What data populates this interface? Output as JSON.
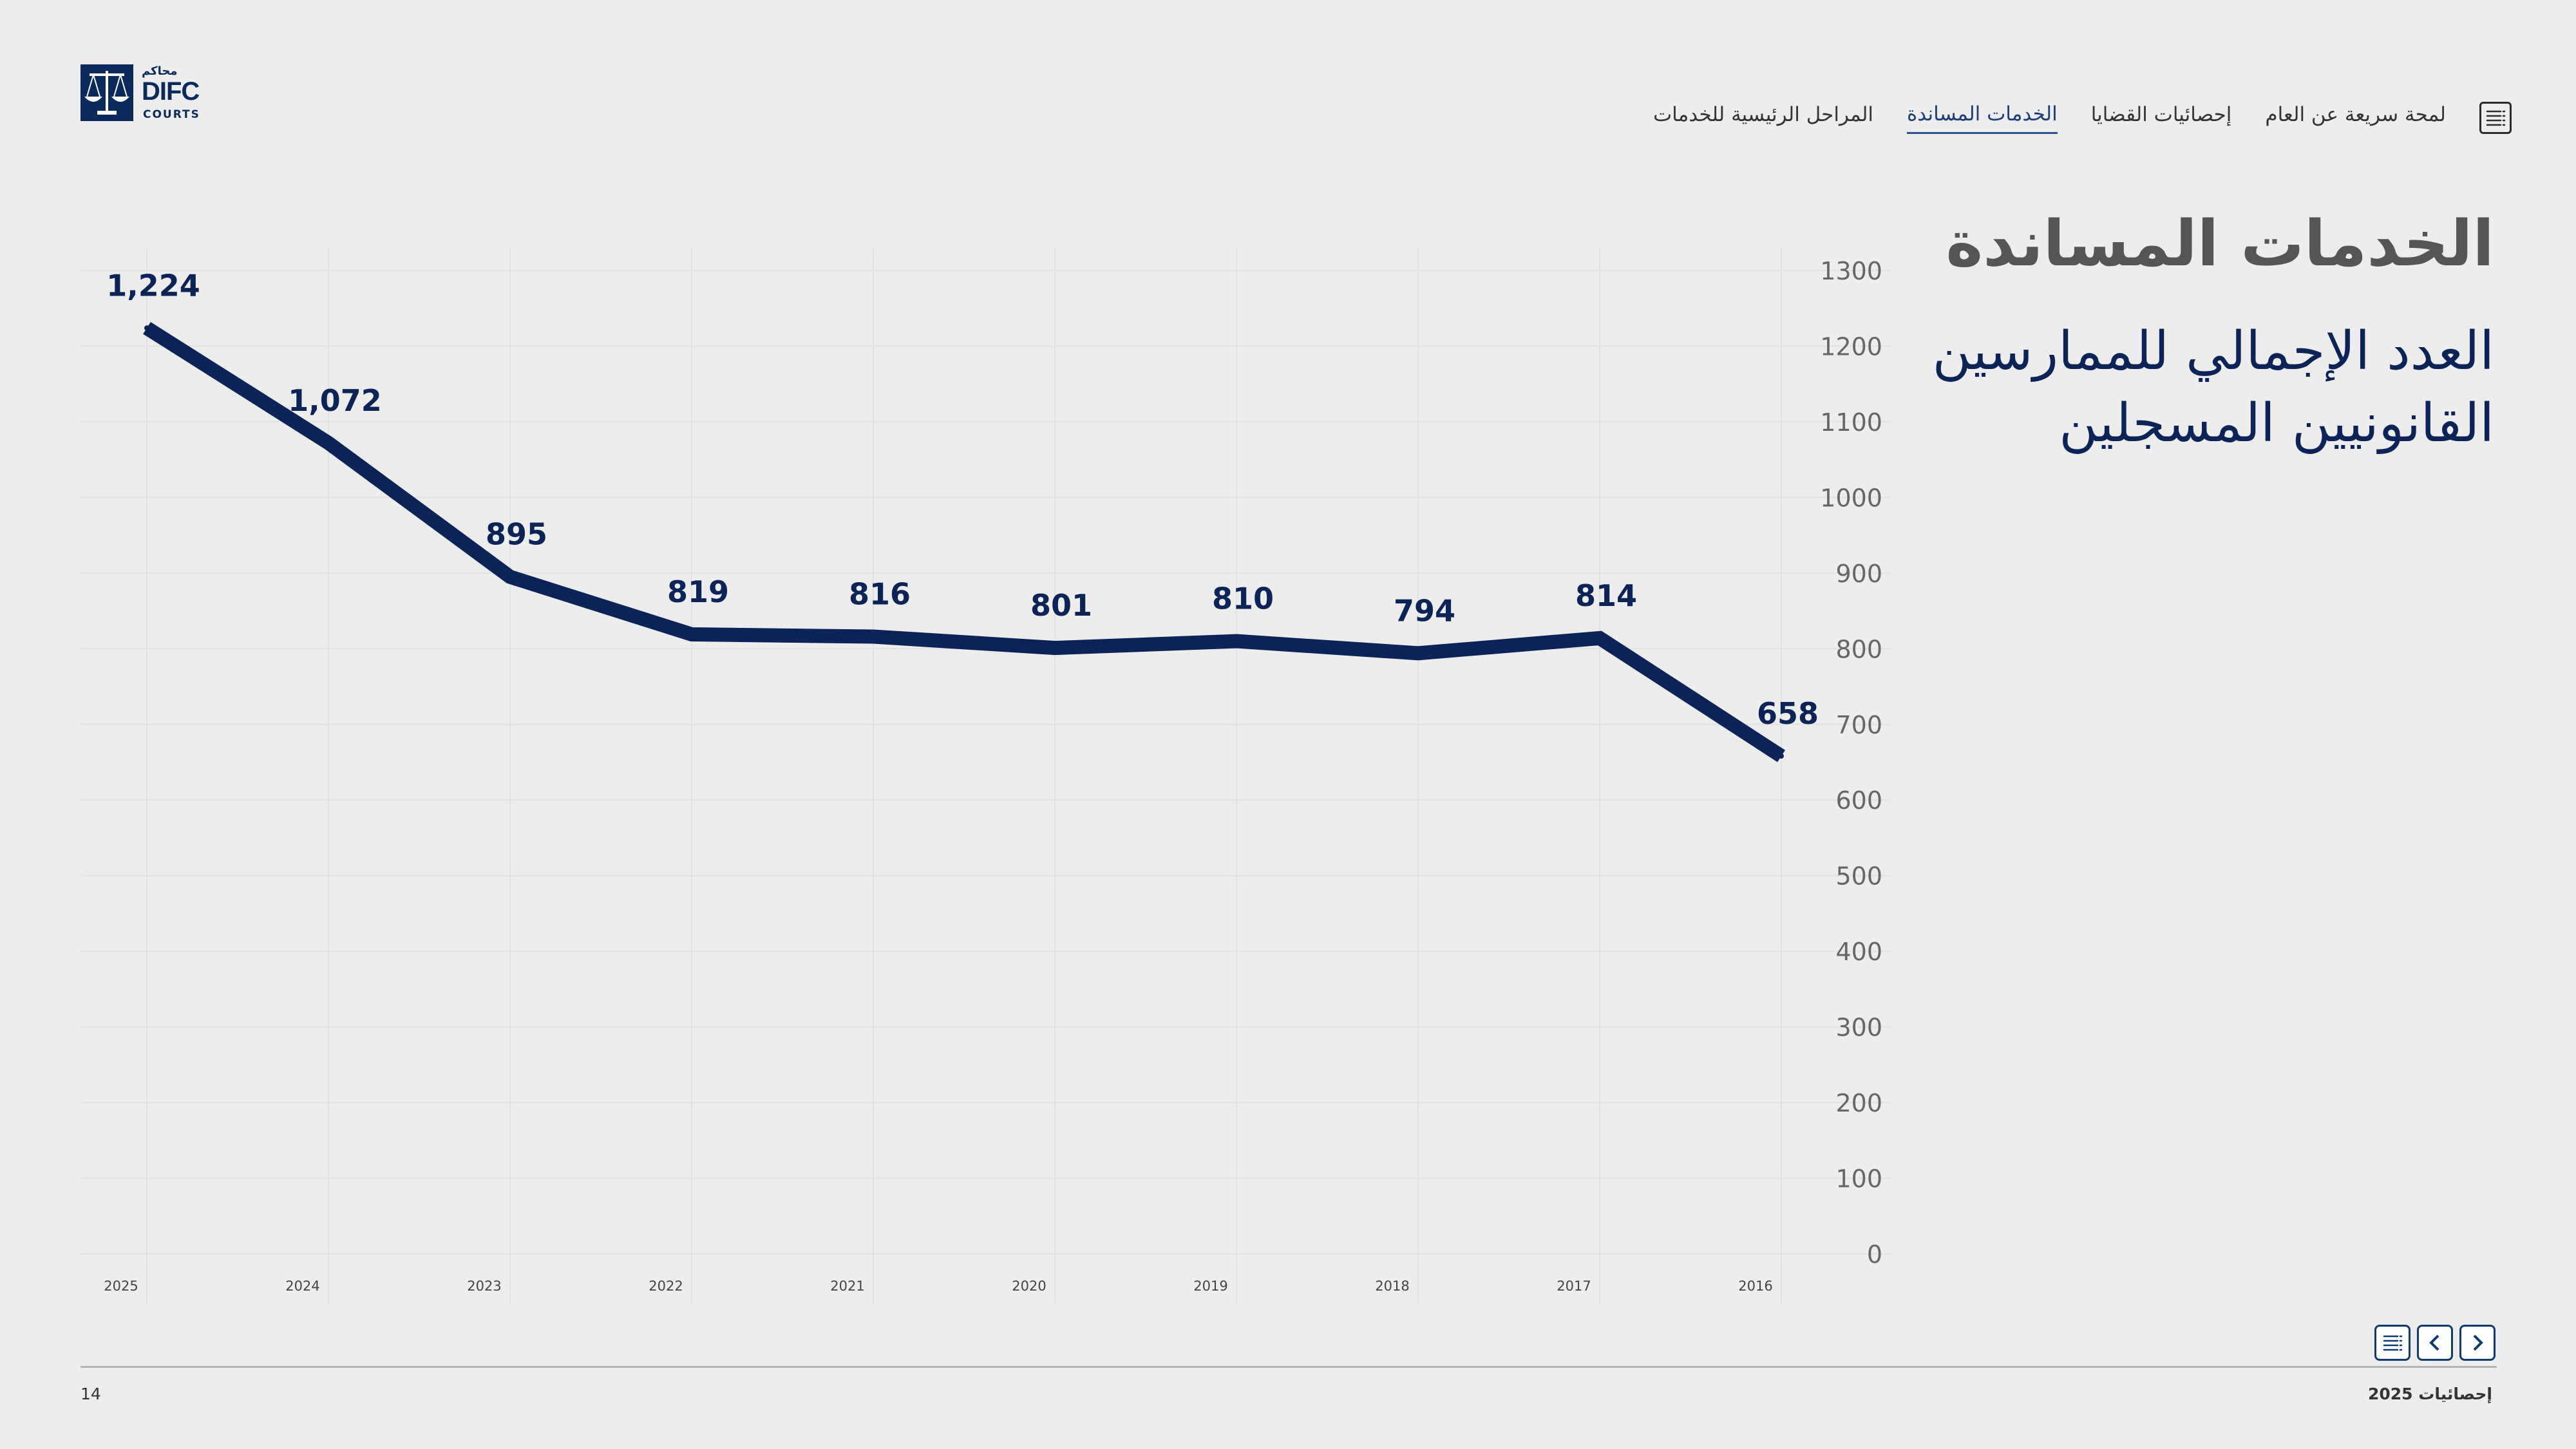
{
  "logo": {
    "arabic": "محاكم",
    "name": "DIFC",
    "sub": "COURTS"
  },
  "nav": {
    "items": [
      {
        "label": "لمحة سريعة عن العام",
        "active": false
      },
      {
        "label": "إحصائيات القضايا",
        "active": false
      },
      {
        "label": "الخدمات المساندة",
        "active": true
      },
      {
        "label": "المراحل الرئيسية للخدمات",
        "active": false
      }
    ]
  },
  "title": "الخدمات المساندة",
  "subtitle": "العدد الإجمالي للممارسين القانونيين المسجلين",
  "chart_data": {
    "type": "line",
    "title": "",
    "xlabel": "",
    "ylabel": "",
    "categories": [
      "2025",
      "2024",
      "2023",
      "2022",
      "2021",
      "2020",
      "2019",
      "2018",
      "2017",
      "2016"
    ],
    "x_direction": "reversed (2025 at left)",
    "y_axis_position": "right",
    "series": [
      {
        "values": [
          1224,
          1072,
          895,
          819,
          816,
          801,
          810,
          794,
          814,
          658
        ]
      }
    ],
    "data_labels": [
      "1,224",
      "1,072",
      "895",
      "819",
      "816",
      "801",
      "810",
      "794",
      "814",
      "658"
    ],
    "yticks": [
      "0",
      "100",
      "200",
      "300",
      "400",
      "500",
      "600",
      "700",
      "800",
      "900",
      "1000",
      "1100",
      "1200",
      "1300"
    ],
    "ylim": [
      0,
      1300
    ],
    "grid": true,
    "line_color": "#0c2357"
  },
  "footer": {
    "page": "14",
    "right": "إحصائيات 2025"
  },
  "colors": {
    "accent": "#0c2357",
    "background": "#ededed",
    "active_nav": "#1d3d7a"
  }
}
